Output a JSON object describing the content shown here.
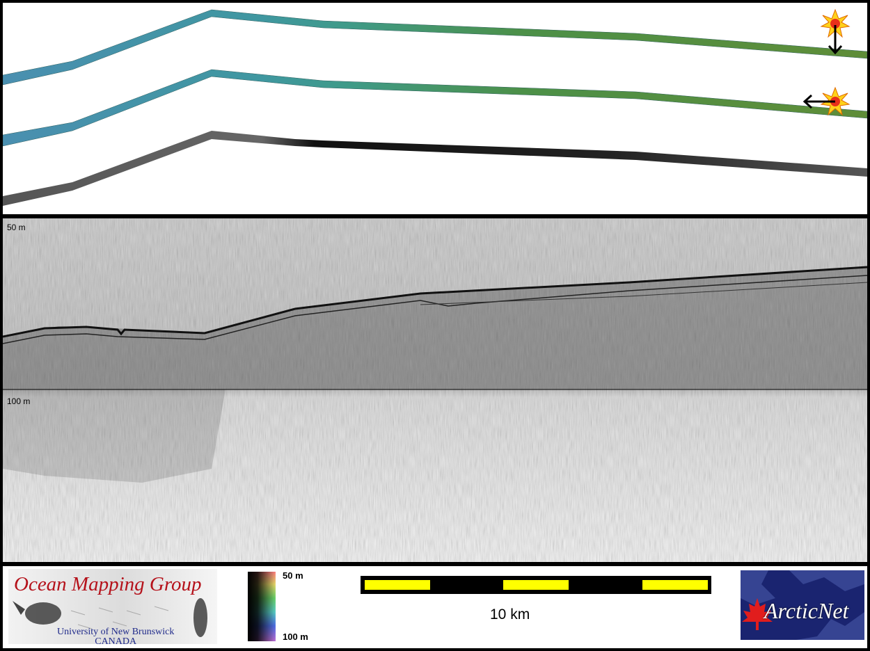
{
  "swath": {
    "bands": [
      {
        "name": "top-swath",
        "colors": [
          "#4a8fa8",
          "#3f9a8a",
          "#4f8f48",
          "#5f8f38"
        ]
      },
      {
        "name": "middle-swath",
        "colors": [
          "#3f8fa8",
          "#3f9a8a",
          "#4f8f48",
          "#5f8f38"
        ]
      },
      {
        "name": "backscatter-swath",
        "colors": [
          "#555555",
          "#222222",
          "#111111",
          "#444444"
        ]
      }
    ]
  },
  "profile": {
    "depth_top_label": "50 m",
    "depth_mid_label": "100 m"
  },
  "footer": {
    "logo_title": "Ocean Mapping Group",
    "logo_university": "University of New Brunswick",
    "logo_country": "CANADA",
    "colorbar_top": "50 m",
    "colorbar_bottom": "100 m",
    "scale_label": "10 km",
    "arctic_logo": "ArcticNet"
  }
}
